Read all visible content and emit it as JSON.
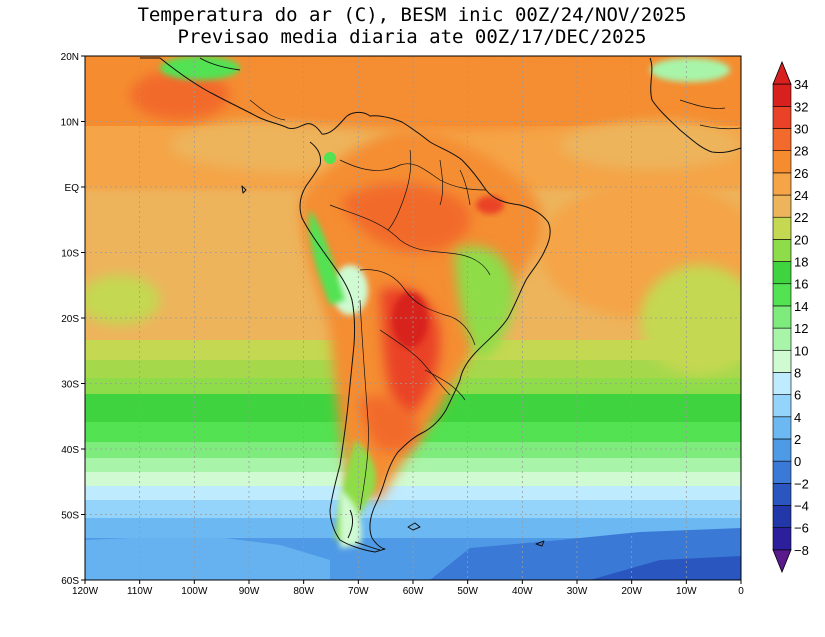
{
  "title": {
    "line1": "Temperatura do ar (C), BESM inic 00Z/24/NOV/2025",
    "line2": "Previsao media diaria ate 00Z/17/DEC/2025"
  },
  "map": {
    "lon_range": [
      -120,
      0
    ],
    "lat_range": [
      -60,
      20
    ],
    "lon_ticks": [
      {
        "value": -120,
        "label": "120W"
      },
      {
        "value": -110,
        "label": "110W"
      },
      {
        "value": -100,
        "label": "100W"
      },
      {
        "value": -90,
        "label": "90W"
      },
      {
        "value": -80,
        "label": "80W"
      },
      {
        "value": -70,
        "label": "70W"
      },
      {
        "value": -60,
        "label": "60W"
      },
      {
        "value": -50,
        "label": "50W"
      },
      {
        "value": -40,
        "label": "40W"
      },
      {
        "value": -30,
        "label": "30W"
      },
      {
        "value": -20,
        "label": "20W"
      },
      {
        "value": -10,
        "label": "10W"
      },
      {
        "value": 0,
        "label": "0"
      }
    ],
    "lat_ticks": [
      {
        "value": 20,
        "label": "20N"
      },
      {
        "value": 10,
        "label": "10N"
      },
      {
        "value": 0,
        "label": "EQ"
      },
      {
        "value": -10,
        "label": "10S"
      },
      {
        "value": -20,
        "label": "20S"
      },
      {
        "value": -30,
        "label": "30S"
      },
      {
        "value": -40,
        "label": "40S"
      },
      {
        "value": -50,
        "label": "50S"
      },
      {
        "value": -60,
        "label": "60S"
      }
    ]
  },
  "colorbar": {
    "levels": [
      {
        "value": -8,
        "label": "−8",
        "color": "#5a1a8c"
      },
      {
        "value": -6,
        "label": "−6",
        "color": "#2c1f9c"
      },
      {
        "value": -4,
        "label": "−4",
        "color": "#2338a8"
      },
      {
        "value": -2,
        "label": "−2",
        "color": "#2a56c0"
      },
      {
        "value": 0,
        "label": "0",
        "color": "#3a7ad6"
      },
      {
        "value": 2,
        "label": "2",
        "color": "#4f9ae6"
      },
      {
        "value": 4,
        "label": "4",
        "color": "#6cb8f2"
      },
      {
        "value": 6,
        "label": "6",
        "color": "#95d4fa"
      },
      {
        "value": 8,
        "label": "8",
        "color": "#bfebff"
      },
      {
        "value": 10,
        "label": "10",
        "color": "#cffad2"
      },
      {
        "value": 12,
        "label": "12",
        "color": "#a8f4a8"
      },
      {
        "value": 14,
        "label": "14",
        "color": "#7eec7c"
      },
      {
        "value": 16,
        "label": "16",
        "color": "#52e252"
      },
      {
        "value": 18,
        "label": "18",
        "color": "#3fd43f"
      },
      {
        "value": 20,
        "label": "20",
        "color": "#8fdc4a"
      },
      {
        "value": 22,
        "label": "22",
        "color": "#c4d851"
      },
      {
        "value": 24,
        "label": "24",
        "color": "#edb45c"
      },
      {
        "value": 26,
        "label": "26",
        "color": "#f5a447"
      },
      {
        "value": 28,
        "label": "28",
        "color": "#f58d30"
      },
      {
        "value": 30,
        "label": "30",
        "color": "#f26a2c"
      },
      {
        "value": 32,
        "label": "32",
        "color": "#ea4226"
      },
      {
        "value": 34,
        "label": "34",
        "color": "#d8201f"
      }
    ]
  }
}
